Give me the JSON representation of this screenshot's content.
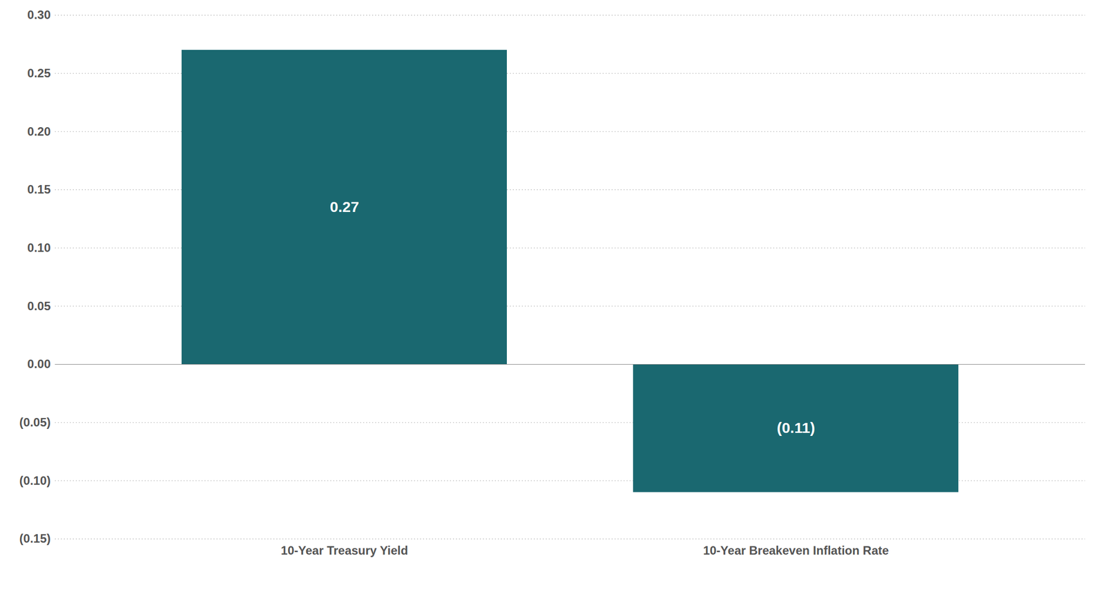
{
  "chart_data": {
    "type": "bar",
    "categories": [
      "10-Year Treasury Yield",
      "10-Year Breakeven Inflation Rate"
    ],
    "values": [
      0.27,
      -0.11
    ],
    "value_labels": [
      "0.27",
      "(0.11)"
    ],
    "data_labels": true,
    "color": "#1a6870",
    "ylim": [
      -0.15,
      0.3
    ],
    "yticks": [
      {
        "value": -0.15,
        "label": "(0.15)"
      },
      {
        "value": -0.1,
        "label": "(0.10)"
      },
      {
        "value": -0.05,
        "label": "(0.05)"
      },
      {
        "value": 0,
        "label": "0.00"
      },
      0.05,
      {
        "value": 0.1,
        "label": "0.10"
      },
      0.15,
      {
        "value": 0.2,
        "label": "0.20"
      },
      0.25,
      {
        "value": 0.3,
        "label": "0.30"
      }
    ],
    "grid": true
  }
}
